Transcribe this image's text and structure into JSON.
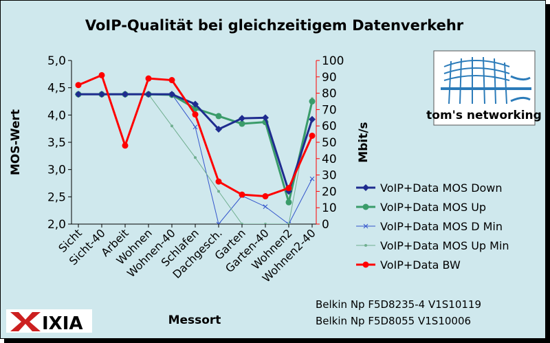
{
  "chart_data": {
    "type": "line",
    "title": "VoIP-Qualität bei gleichzeitigem Datenverkehr",
    "xlabel": "Messort",
    "ylabel": "MOS-Wert",
    "y2label": "Mbit/s",
    "categories": [
      "Sicht",
      "Sicht-40",
      "Arbeit",
      "Wohnen",
      "Wohnen-40",
      "Schlafen",
      "Dachgesch.",
      "Garten",
      "Garten-40",
      "Wohnen2",
      "Wohnen2-40"
    ],
    "ylim": [
      2.0,
      5.0
    ],
    "yticks": [
      "2,0",
      "2,5",
      "3,0",
      "3,5",
      "4,0",
      "4,5",
      "5,0"
    ],
    "y2lim": [
      0,
      100
    ],
    "y2ticks": [
      "0",
      "10",
      "20",
      "30",
      "40",
      "50",
      "60",
      "70",
      "80",
      "90",
      "100"
    ],
    "grid": false,
    "legend_position": "right",
    "series": [
      {
        "name": "VoIP+Data MOS Down",
        "axis": "left",
        "color": "#1f2c8f",
        "marker": "diamond",
        "width": 3,
        "values": [
          4.38,
          4.38,
          4.38,
          4.38,
          4.38,
          4.2,
          3.74,
          3.94,
          3.95,
          2.6,
          3.92
        ]
      },
      {
        "name": "VoIP+Data MOS Up",
        "axis": "left",
        "color": "#3a9c6a",
        "marker": "circle",
        "width": 3,
        "values": [
          4.38,
          4.38,
          4.38,
          4.38,
          4.37,
          4.12,
          3.98,
          3.84,
          3.87,
          2.4,
          4.25
        ]
      },
      {
        "name": "VoIP+Data MOS D Min",
        "axis": "left",
        "color": "#3355cc",
        "marker": "x",
        "width": 1,
        "values": [
          4.38,
          4.38,
          4.38,
          4.38,
          4.38,
          3.78,
          2.0,
          2.52,
          2.32,
          2.0,
          2.83
        ]
      },
      {
        "name": "VoIP+Data MOS Up Min",
        "axis": "left",
        "color": "#6fae8f",
        "marker": "smallcircle",
        "width": 1,
        "values": [
          4.38,
          4.38,
          4.38,
          4.38,
          3.8,
          3.22,
          2.6,
          2.0,
          2.0,
          2.0,
          4.3
        ]
      },
      {
        "name": "VoIP+Data BW",
        "axis": "right",
        "color": "#ff0000",
        "marker": "circle",
        "width": 3,
        "values": [
          85,
          91,
          48,
          89,
          88,
          67,
          26,
          18,
          17,
          22,
          54
        ]
      }
    ]
  },
  "info": {
    "line1": "Belkin Np F5D8235-4 V1S10119",
    "line2": "Belkin Np F5D8055 V1S10006"
  },
  "logos": {
    "toms_text": "tom's networking",
    "ixia_text": "IXIA"
  }
}
